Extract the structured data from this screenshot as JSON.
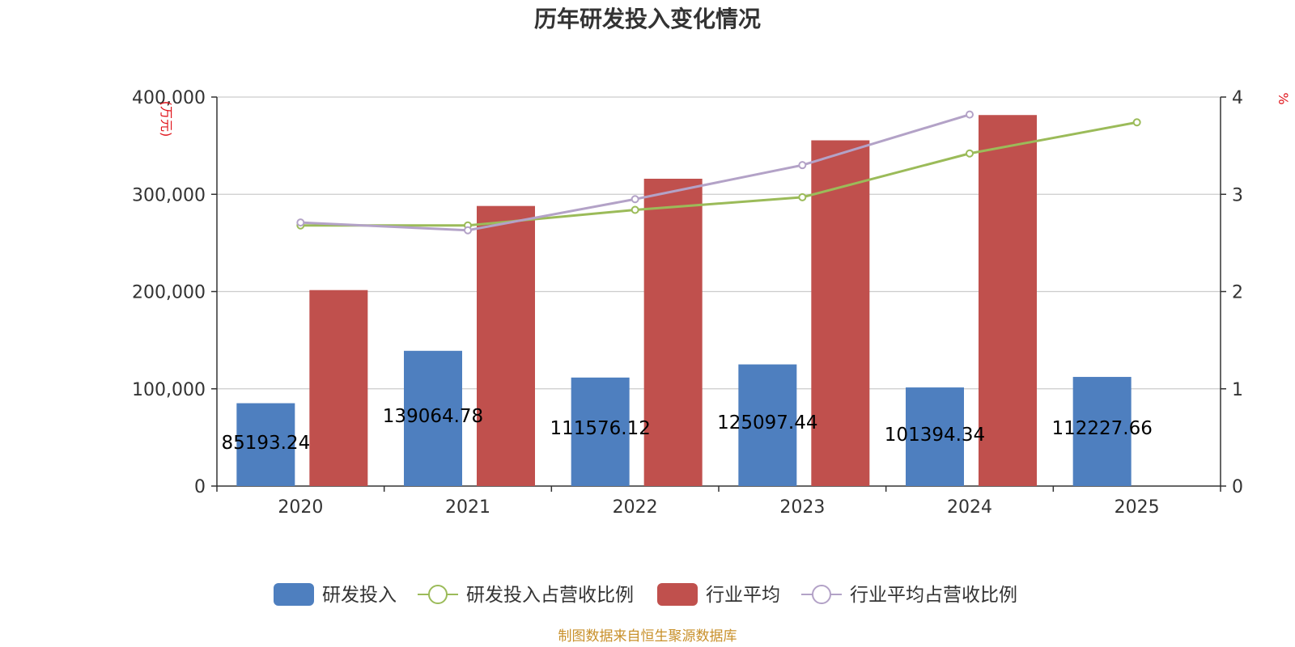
{
  "chart_data": {
    "type": "bar",
    "title": "历年研发投入变化情况",
    "categories": [
      "2020",
      "2021",
      "2022",
      "2023",
      "2024",
      "2025"
    ],
    "y_left": {
      "unit": "万元",
      "ticks": [
        "0",
        "100,000",
        "200,000",
        "300,000",
        "400,000"
      ],
      "range": [
        0,
        400000
      ]
    },
    "y_right": {
      "unit": "%",
      "ticks": [
        "0",
        "1",
        "2",
        "3",
        "4"
      ],
      "range": [
        0,
        4
      ]
    },
    "series": [
      {
        "name": "研发投入",
        "kind": "bar",
        "color": "#4e7fbf",
        "values": [
          85193.24,
          139064.78,
          111576.12,
          125097.44,
          101394.34,
          112227.66
        ],
        "labels": [
          "85193.24",
          "139064.78",
          "111576.12",
          "125097.44",
          "101394.34",
          "112227.66"
        ]
      },
      {
        "name": "研发投入占营收比例",
        "kind": "line",
        "axis": "right",
        "color": "#9bbb59",
        "values": [
          2.68,
          2.68,
          2.84,
          2.97,
          3.42,
          3.74
        ]
      },
      {
        "name": "行业平均",
        "kind": "bar",
        "color": "#c0504d",
        "values": [
          201500,
          288000,
          316000,
          355500,
          381500,
          null
        ]
      },
      {
        "name": "行业平均占营收比例",
        "kind": "line",
        "axis": "right",
        "color": "#b3a2c7",
        "values": [
          2.71,
          2.63,
          2.95,
          3.3,
          3.82,
          null
        ]
      }
    ],
    "grid": true,
    "legend_position": "bottom"
  },
  "source_note": "制图数据来自恒生聚源数据库"
}
